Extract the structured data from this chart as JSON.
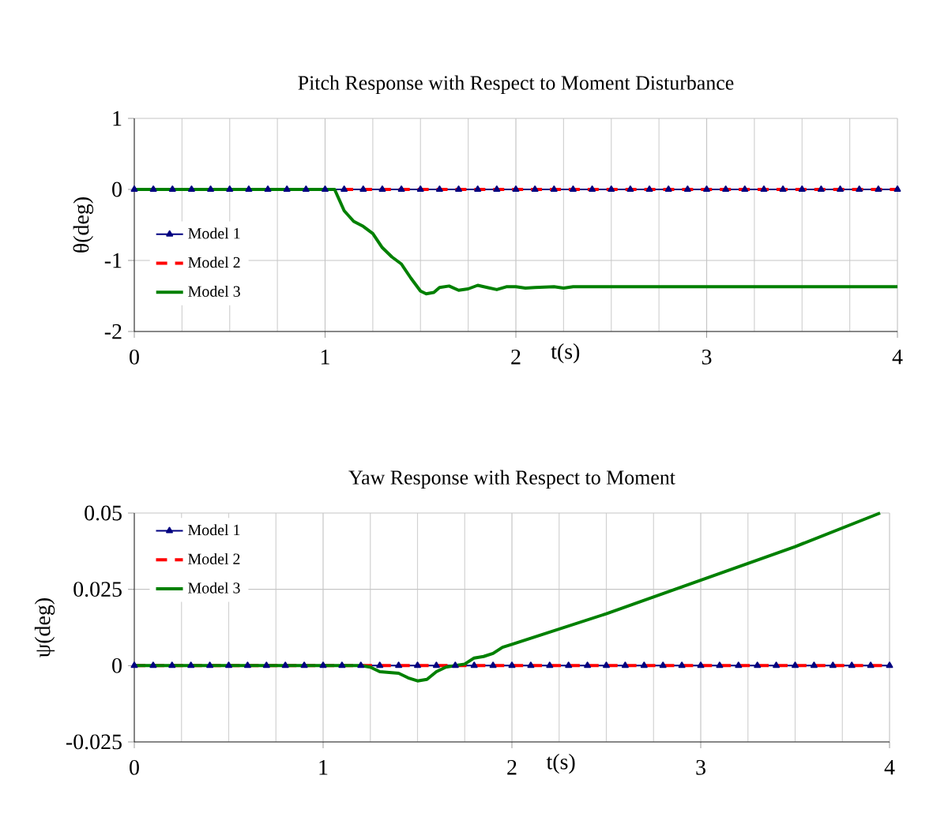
{
  "chart_data": [
    {
      "type": "line",
      "title": "Pitch Response with Respect to  Moment Disturbance",
      "xlabel": "t(s)",
      "ylabel": "θ(deg)",
      "xlim": [
        0,
        4
      ],
      "ylim": [
        -2,
        1
      ],
      "xticks": [
        0,
        1,
        2,
        3,
        4
      ],
      "yticks": [
        -2,
        -1,
        0,
        1
      ],
      "grid": true,
      "legend": "left",
      "series": [
        {
          "name": "Model 1",
          "color": "#000080",
          "marker": "triangle",
          "line_style": "solid",
          "x": [
            0,
            0.1,
            0.2,
            0.3,
            0.4,
            0.5,
            0.6,
            0.7,
            0.8,
            0.9,
            1,
            1.1,
            1.2,
            1.3,
            1.4,
            1.5,
            1.6,
            1.7,
            1.8,
            1.9,
            2,
            2.1,
            2.2,
            2.3,
            2.4,
            2.5,
            2.6,
            2.7,
            2.8,
            2.9,
            3,
            3.1,
            3.2,
            3.3,
            3.4,
            3.5,
            3.6,
            3.7,
            3.8,
            3.9,
            4
          ],
          "values": [
            0,
            0,
            0,
            0,
            0,
            0,
            0,
            0,
            0,
            0,
            0,
            0,
            0,
            0,
            0,
            0,
            0,
            0,
            0,
            0,
            0,
            0,
            0,
            0,
            0,
            0,
            0,
            0,
            0,
            0,
            0,
            0,
            0,
            0,
            0,
            0,
            0,
            0,
            0,
            0,
            0
          ]
        },
        {
          "name": "Model 2",
          "color": "#ff0000",
          "marker": "none",
          "line_style": "dashed",
          "x": [
            0,
            4
          ],
          "values": [
            0,
            0
          ]
        },
        {
          "name": "Model 3",
          "color": "#008000",
          "marker": "none",
          "line_style": "solid",
          "x": [
            0,
            1.05,
            1.1,
            1.15,
            1.2,
            1.25,
            1.3,
            1.35,
            1.4,
            1.45,
            1.5,
            1.53,
            1.57,
            1.6,
            1.65,
            1.7,
            1.75,
            1.8,
            1.85,
            1.9,
            1.95,
            2,
            2.05,
            2.1,
            2.2,
            2.25,
            2.3,
            4
          ],
          "values": [
            0,
            0,
            -0.3,
            -0.45,
            -0.52,
            -0.62,
            -0.82,
            -0.95,
            -1.05,
            -1.25,
            -1.43,
            -1.47,
            -1.45,
            -1.38,
            -1.36,
            -1.42,
            -1.4,
            -1.35,
            -1.38,
            -1.41,
            -1.37,
            -1.37,
            -1.39,
            -1.38,
            -1.37,
            -1.39,
            -1.37,
            -1.37
          ]
        }
      ]
    },
    {
      "type": "line",
      "title": "Yaw Response with Respect to  Moment",
      "xlabel": "t(s)",
      "ylabel": "ψ(deg)",
      "xlim": [
        0,
        4
      ],
      "ylim": [
        -0.025,
        0.05
      ],
      "xticks": [
        0,
        1,
        2,
        3,
        4
      ],
      "yticks": [
        -0.025,
        0,
        0.025,
        0.05
      ],
      "grid": true,
      "legend": "top left",
      "series": [
        {
          "name": "Model 1",
          "color": "#000080",
          "marker": "triangle",
          "line_style": "solid",
          "x": [
            0,
            0.1,
            0.2,
            0.3,
            0.4,
            0.5,
            0.6,
            0.7,
            0.8,
            0.9,
            1,
            1.1,
            1.2,
            1.3,
            1.4,
            1.5,
            1.6,
            1.7,
            1.8,
            1.9,
            2,
            2.1,
            2.2,
            2.3,
            2.4,
            2.5,
            2.6,
            2.7,
            2.8,
            2.9,
            3,
            3.1,
            3.2,
            3.3,
            3.4,
            3.5,
            3.6,
            3.7,
            3.8,
            3.9,
            4
          ],
          "values": [
            0,
            0,
            0,
            0,
            0,
            0,
            0,
            0,
            0,
            0,
            0,
            0,
            0,
            0,
            0,
            0,
            0,
            0,
            0,
            0,
            0,
            0,
            0,
            0,
            0,
            0,
            0,
            0,
            0,
            0,
            0,
            0,
            0,
            0,
            0,
            0,
            0,
            0,
            0,
            0,
            0
          ]
        },
        {
          "name": "Model 2",
          "color": "#ff0000",
          "marker": "none",
          "line_style": "dashed",
          "x": [
            0,
            4
          ],
          "values": [
            0,
            0
          ]
        },
        {
          "name": "Model 3",
          "color": "#008000",
          "marker": "none",
          "line_style": "solid",
          "x": [
            0,
            1.2,
            1.25,
            1.3,
            1.4,
            1.45,
            1.5,
            1.55,
            1.6,
            1.65,
            1.7,
            1.75,
            1.8,
            1.85,
            1.9,
            1.95,
            2,
            2.1,
            2.5,
            3,
            3.5,
            3.95
          ],
          "values": [
            0,
            0,
            -0.0005,
            -0.002,
            -0.0025,
            -0.004,
            -0.005,
            -0.0045,
            -0.002,
            -0.0005,
            0,
            0.0005,
            0.0025,
            0.003,
            0.004,
            0.006,
            0.007,
            0.009,
            0.017,
            0.028,
            0.039,
            0.05
          ]
        }
      ]
    }
  ]
}
